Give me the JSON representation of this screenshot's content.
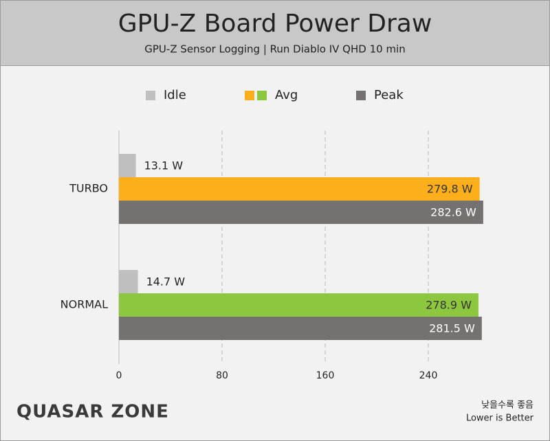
{
  "chart_data": {
    "type": "hbar",
    "title": "GPU-Z Board Power Draw",
    "subtitle": "GPU-Z Sensor Logging  |  Run Diablo IV QHD 10 min",
    "categories": [
      "TURBO",
      "NORMAL"
    ],
    "series": [
      {
        "name": "Idle",
        "color": "#c0bfbf",
        "values": [
          13.1,
          14.7
        ],
        "value_labels": [
          "13.1 W",
          "14.7 W"
        ]
      },
      {
        "name": "Avg",
        "colors": [
          "#fdae1b",
          "#8dc63f"
        ],
        "values": [
          279.8,
          278.9
        ],
        "value_labels": [
          "279.8 W",
          "278.9 W"
        ]
      },
      {
        "name": "Peak",
        "color": "#767171",
        "values": [
          282.6,
          281.5
        ],
        "value_labels": [
          "282.6 W",
          "281.5 W"
        ]
      }
    ],
    "xlim": [
      0,
      320
    ],
    "xticks": [
      0,
      80,
      160,
      240
    ],
    "grid": true,
    "source": "QUASAR ZONE",
    "notes": [
      "낮을수록 좋음",
      "Lower is Better"
    ]
  }
}
